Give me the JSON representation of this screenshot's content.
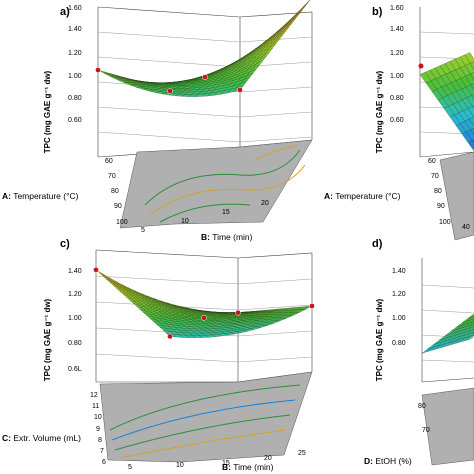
{
  "chart_data": [
    {
      "id": "a",
      "type": "surface3d",
      "panel_label": "a)",
      "z_axis_label": "TPC (mg GAE g⁻¹ dw)",
      "z_ticks": [
        "0.60",
        "0.80",
        "1.00",
        "1.20",
        "1.40",
        "1.60"
      ],
      "zlim": [
        0.6,
        1.6
      ],
      "x_axis_label_bold": "B:",
      "x_axis_label_rest": " Time (min)",
      "x_ticks": [
        "5",
        "10",
        "15",
        "20"
      ],
      "xlim": [
        5,
        25
      ],
      "y_axis_label_bold": "A:",
      "y_axis_label_rest": " Temperature (°C)",
      "y_ticks": [
        "60",
        "70",
        "80",
        "90",
        "100"
      ],
      "ylim": [
        60,
        100
      ],
      "corner_values": {
        "t100_x5": 1.18,
        "t100_x25": 0.98,
        "t60_x5": 0.98,
        "t60_x25": 1.55
      },
      "design_points": [
        {
          "x": 15,
          "y": 80,
          "z": 1.14
        },
        {
          "x": 25,
          "y": 60,
          "z": 1.59
        },
        {
          "x": 5,
          "y": 100,
          "z": 1.18
        },
        {
          "x": 5,
          "y": 60,
          "z": 0.82
        },
        {
          "x": 25,
          "y": 100,
          "z": 0.92
        }
      ]
    },
    {
      "id": "b",
      "type": "surface3d",
      "panel_label": "b)",
      "z_axis_label": "TPC (mg GAE g⁻¹ dw)",
      "z_ticks": [
        "0.60",
        "0.80",
        "1.00",
        "1.20",
        "1.40",
        "1.60"
      ],
      "zlim": [
        0.6,
        1.6
      ],
      "y_axis_label_bold": "A:",
      "y_axis_label_rest": " Temperature (°C)",
      "y_ticks": [
        "60",
        "70",
        "80",
        "90",
        "100"
      ],
      "x_ticks": [
        "40"
      ]
    },
    {
      "id": "c",
      "type": "surface3d",
      "panel_label": "c)",
      "z_axis_label": "TPC (mg GAE g⁻¹ dw)",
      "z_ticks": [
        "0.6L",
        "0.80",
        "1.00",
        "1.20",
        "1.40"
      ],
      "zlim": [
        0.6,
        1.4
      ],
      "x_axis_label_bold": "B:",
      "x_axis_label_rest": " Time (min)",
      "x_ticks": [
        "5",
        "10",
        "15",
        "20",
        "25"
      ],
      "xlim": [
        5,
        25
      ],
      "y_axis_label_bold": "C:",
      "y_axis_label_rest": " Extr. Volume (mL)",
      "y_ticks": [
        "6",
        "7",
        "8",
        "9",
        "10",
        "11",
        "12"
      ],
      "ylim": [
        6,
        12
      ],
      "corner_values": {
        "v6_x5": 1.28,
        "v6_x25": 1.02,
        "v12_x5": 0.84,
        "v12_x25": 1.0
      },
      "design_points": [
        {
          "x": 15,
          "y": 9,
          "z": 1.12
        },
        {
          "x": 5,
          "y": 6,
          "z": 1.29
        },
        {
          "x": 5,
          "y": 12,
          "z": 0.84
        },
        {
          "x": 25,
          "y": 6,
          "z": 1.03
        },
        {
          "x": 25,
          "y": 12,
          "z": 1.01
        }
      ]
    },
    {
      "id": "d",
      "type": "surface3d",
      "panel_label": "d)",
      "z_axis_label": "TPC (mg GAE g⁻¹ dw)",
      "z_ticks": [
        "0.80",
        "1.00",
        "1.20",
        "1.40"
      ],
      "zlim": [
        0.6,
        1.4
      ],
      "y_axis_label_bold": "D:",
      "y_axis_label_rest": " EtOH (%)",
      "y_ticks": [
        "70",
        "80"
      ]
    }
  ],
  "colors": {
    "surface_low": "#1a7fd6",
    "surface_mid": "#4fc23c",
    "surface_high": "#e8461e",
    "point": "#c4161c",
    "floor": "#a8a8a8"
  }
}
